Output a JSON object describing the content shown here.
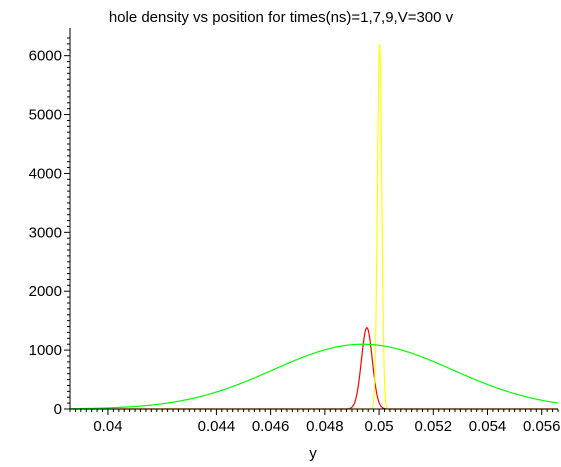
{
  "chart_data": {
    "type": "line",
    "title": "hole density vs position for times(ns)=1,7,9,V=300 v",
    "xlabel": "y",
    "ylabel": "",
    "xlim": [
      0.0386,
      0.0566
    ],
    "ylim": [
      0,
      6300
    ],
    "grid": false,
    "legend": "none",
    "x_ticks": [
      "0.04",
      "0.044",
      "0.046",
      "0.048",
      "0.05",
      "0.052",
      "0.054",
      "0.056"
    ],
    "x_tick_values": [
      0.04,
      0.044,
      0.046,
      0.048,
      0.05,
      0.052,
      0.054,
      0.056
    ],
    "y_ticks": [
      "0",
      "1000",
      "2000",
      "3000",
      "4000",
      "5000",
      "6000"
    ],
    "y_tick_values": [
      0,
      1000,
      2000,
      3000,
      4000,
      5000,
      6000
    ],
    "series": [
      {
        "color": "#ff0000",
        "model": "gaussian",
        "peak": 1380,
        "center": 0.04955,
        "sigma": 0.0002
      },
      {
        "color": "#ffff00",
        "model": "gaussian",
        "peak": 6200,
        "center": 0.05002,
        "sigma": 8e-05
      },
      {
        "color": "#00ff00",
        "model": "gaussian",
        "peak": 1100,
        "center": 0.0494,
        "sigma": 0.0033
      }
    ]
  }
}
